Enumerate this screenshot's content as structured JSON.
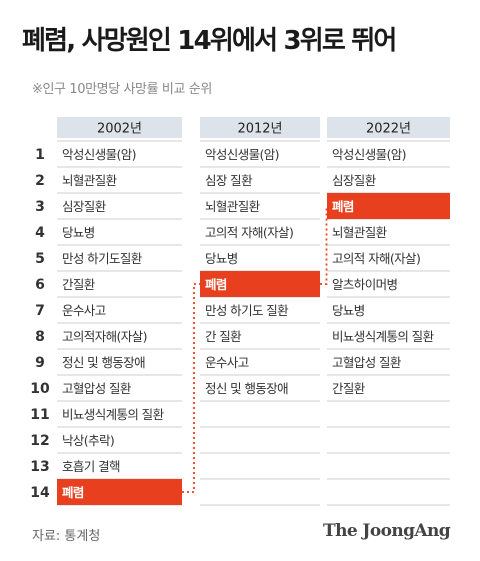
{
  "title": "폐렴, 사망원인 14위에서 3위로 뛰어",
  "subtitle": "※인구 10만명당 사망률 비교 순위",
  "source": "자료: 통계청",
  "brand": "The JoongAng",
  "colors": {
    "highlight": "#e8401f",
    "header_bg": "#dde3ea",
    "line": "#cfcfcf",
    "text": "#333333",
    "rank_text": "#333333"
  },
  "chart_data": {
    "type": "table",
    "highlight_item": "폐렴",
    "ranks": [
      "1",
      "2",
      "3",
      "4",
      "5",
      "6",
      "7",
      "8",
      "9",
      "10",
      "11",
      "12",
      "13",
      "14"
    ],
    "columns": [
      {
        "year": "2002년",
        "items": [
          "악성신생물(암)",
          "뇌혈관질환",
          "심장질환",
          "당뇨병",
          "만성 하기도질환",
          "간질환",
          "운수사고",
          "고의적자해(자살)",
          "정신 및 행동장애",
          "고혈압성 질환",
          "비뇨생식계통의 질환",
          "낙상(추락)",
          "호흡기 결핵",
          "폐렴"
        ]
      },
      {
        "year": "2012년",
        "items": [
          "악성신생물(암)",
          "심장 질환",
          "뇌혈관질환",
          "고의적 자해(자살)",
          "당뇨병",
          "폐렴",
          "만성 하기도 질환",
          "간 질환",
          "운수사고",
          "정신 및 행동장애"
        ]
      },
      {
        "year": "2022년",
        "items": [
          "악성신생물(암)",
          "심장질환",
          "폐렴",
          "뇌혈관질환",
          "고의적 자해(자살)",
          "알츠하이머병",
          "당뇨병",
          "비뇨생식계통의 질환",
          "고혈압성 질환",
          "간질환"
        ]
      }
    ]
  }
}
